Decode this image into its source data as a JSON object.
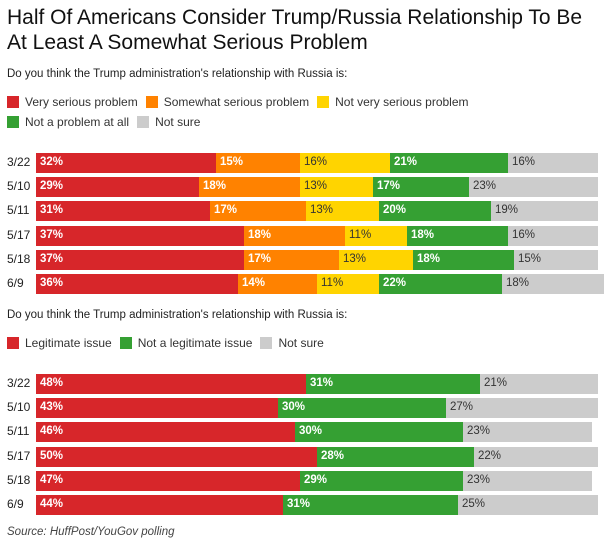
{
  "title": "Half Of Americans Consider Trump/Russia Relationship To Be At Least A Somewhat Serious Problem",
  "source": "Source: HuffPost/YouGov polling",
  "chart_data": [
    {
      "type": "bar",
      "stacked": true,
      "orientation": "horizontal",
      "question": "Do you think the Trump administration's relationship with Russia is:",
      "categories": [
        "3/22",
        "5/10",
        "5/11",
        "5/17",
        "5/18",
        "6/9"
      ],
      "xlim": [
        0,
        100
      ],
      "legend_placement": "top-left",
      "series": [
        {
          "name": "Very serious problem",
          "color": "#d7262a",
          "label_color": "#ffffff",
          "values": [
            32,
            29,
            31,
            37,
            37,
            36
          ]
        },
        {
          "name": "Somewhat serious problem",
          "color": "#ff8200",
          "label_color": "#ffffff",
          "values": [
            15,
            18,
            17,
            18,
            17,
            14
          ]
        },
        {
          "name": "Not very serious problem",
          "color": "#ffd400",
          "label_color": "#333333",
          "values": [
            16,
            13,
            13,
            11,
            13,
            11
          ]
        },
        {
          "name": "Not a problem at all",
          "color": "#35a033",
          "label_color": "#ffffff",
          "values": [
            21,
            17,
            20,
            18,
            18,
            22
          ]
        },
        {
          "name": "Not sure",
          "color": "#cccccc",
          "label_color": "#333333",
          "values": [
            16,
            23,
            19,
            16,
            15,
            18
          ]
        }
      ]
    },
    {
      "type": "bar",
      "stacked": true,
      "orientation": "horizontal",
      "question": "Do you think the Trump administration's relationship with Russia is:",
      "categories": [
        "3/22",
        "5/10",
        "5/11",
        "5/17",
        "5/18",
        "6/9"
      ],
      "xlim": [
        0,
        100
      ],
      "legend_placement": "top-left",
      "series": [
        {
          "name": "Legitimate issue",
          "color": "#d7262a",
          "label_color": "#ffffff",
          "values": [
            48,
            43,
            46,
            50,
            47,
            44
          ]
        },
        {
          "name": "Not a legitimate issue",
          "color": "#35a033",
          "label_color": "#ffffff",
          "values": [
            31,
            30,
            30,
            28,
            29,
            31
          ]
        },
        {
          "name": "Not sure",
          "color": "#cccccc",
          "label_color": "#333333",
          "values": [
            21,
            27,
            23,
            22,
            23,
            25
          ]
        }
      ]
    }
  ]
}
